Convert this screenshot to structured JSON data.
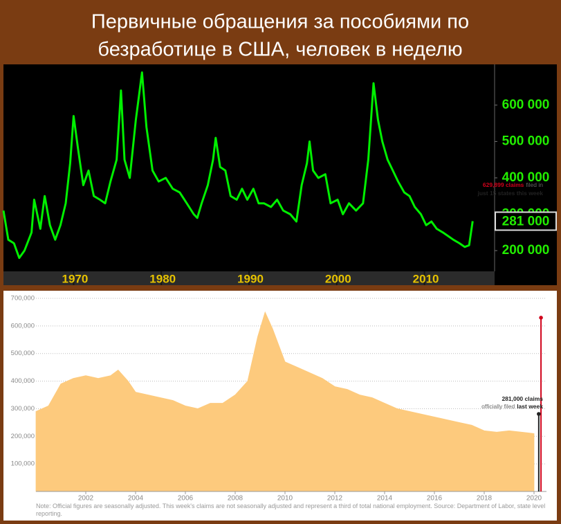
{
  "chart_data": [
    {
      "type": "line",
      "title": [
        "Первичные обращения за пособиями по",
        "безработице в США, человек в неделю"
      ],
      "x": [
        1962.0,
        1962.55,
        1963.2,
        1963.8,
        1964.4,
        1965.2,
        1965.5,
        1966.2,
        1966.7,
        1967.3,
        1967.9,
        1968.5,
        1969.1,
        1969.6,
        1970.0,
        1970.5,
        1971.1,
        1971.7,
        1972.3,
        1973.0,
        1973.6,
        1974.2,
        1974.9,
        1975.4,
        1975.8,
        1976.4,
        1977.1,
        1977.8,
        1978.3,
        1979.0,
        1979.7,
        1980.5,
        1981.3,
        1982.1,
        1982.9,
        1983.7,
        1984.1,
        1984.6,
        1985.3,
        1985.9,
        1986.2,
        1986.7,
        1987.3,
        1987.9,
        1988.6,
        1989.2,
        1989.8,
        1990.5,
        1991.1,
        1991.7,
        1992.5,
        1993.2,
        1993.9,
        1994.7,
        1995.4,
        1996.0,
        1996.6,
        1996.9,
        1997.3,
        1997.9,
        1998.7,
        1999.3,
        2000.1,
        2000.7,
        2001.4,
        2002.2,
        2003.0,
        2003.6,
        2004.2,
        2004.7,
        2005.2,
        2005.8,
        2006.4,
        2007.0,
        2007.7,
        2008.3,
        2008.9,
        2009.6,
        2010.2,
        2010.8,
        2011.4,
        2012.1,
        2012.7,
        2013.3,
        2014.0,
        2014.6,
        2015.1,
        2015.5
      ],
      "series": [
        {
          "color": "#00f000",
          "values": [
            310000,
            230000,
            220000,
            180000,
            200000,
            250000,
            340000,
            260000,
            350000,
            270000,
            230000,
            270000,
            330000,
            440000,
            570000,
            480000,
            380000,
            420000,
            350000,
            340000,
            330000,
            390000,
            450000,
            640000,
            450000,
            400000,
            560000,
            690000,
            540000,
            420000,
            390000,
            400000,
            370000,
            360000,
            330000,
            300000,
            290000,
            330000,
            380000,
            450000,
            510000,
            430000,
            420000,
            350000,
            340000,
            370000,
            340000,
            370000,
            330000,
            330000,
            320000,
            340000,
            310000,
            300000,
            280000,
            380000,
            440000,
            500000,
            420000,
            400000,
            410000,
            330000,
            340000,
            300000,
            330000,
            310000,
            330000,
            450000,
            660000,
            560000,
            500000,
            450000,
            420000,
            390000,
            360000,
            350000,
            320000,
            300000,
            270000,
            280000,
            260000,
            250000,
            240000,
            230000,
            220000,
            210000,
            215000,
            281000
          ]
        }
      ],
      "highlight": {
        "value": 281000,
        "label": "281 000"
      },
      "xlim": [
        1962,
        2018
      ],
      "xticks": [
        1970,
        1980,
        1990,
        2000,
        2010
      ],
      "ylim": [
        143000,
        712000
      ],
      "yticks": [
        {
          "value": 200000,
          "label": "200 000"
        },
        {
          "value": 300000,
          "label": "300 000"
        },
        {
          "value": 400000,
          "label": "400 000"
        },
        {
          "value": 500000,
          "label": "500 000"
        },
        {
          "value": 600000,
          "label": "600 000"
        }
      ]
    },
    {
      "type": "area",
      "x": [
        2000.0,
        2000.5,
        2001.0,
        2001.5,
        2002.0,
        2002.5,
        2003.0,
        2003.3,
        2003.7,
        2004.0,
        2004.5,
        2005.0,
        2005.5,
        2006.0,
        2006.5,
        2007.0,
        2007.5,
        2008.0,
        2008.5,
        2008.9,
        2009.2,
        2009.5,
        2010.0,
        2010.5,
        2011.0,
        2011.5,
        2012.0,
        2012.5,
        2013.0,
        2013.5,
        2014.0,
        2014.5,
        2015.0,
        2015.5,
        2016.0,
        2016.5,
        2017.0,
        2017.5,
        2018.0,
        2018.5,
        2019.0,
        2019.5,
        2020.0
      ],
      "series": [
        {
          "color": "#fdca7d",
          "values": [
            290000,
            310000,
            390000,
            410000,
            420000,
            410000,
            420000,
            440000,
            400000,
            360000,
            350000,
            340000,
            330000,
            310000,
            300000,
            320000,
            320000,
            350000,
            400000,
            560000,
            650000,
            590000,
            470000,
            450000,
            430000,
            410000,
            380000,
            370000,
            350000,
            340000,
            320000,
            300000,
            290000,
            280000,
            270000,
            260000,
            250000,
            240000,
            220000,
            215000,
            220000,
            215000,
            210000
          ]
        }
      ],
      "highlights": [
        {
          "x": 2020.28,
          "value": 629899,
          "value_label": "629,899 claims",
          "text": [
            "filed in",
            "just 15 states this week"
          ],
          "color": "#d0021b"
        },
        {
          "x": 2020.19,
          "value": 281000,
          "value_label": "281,000 claims",
          "text": [
            "officially filed",
            "last week"
          ],
          "color": "#222222"
        }
      ],
      "xlim": [
        2000,
        2020.5
      ],
      "xticks": [
        2002,
        2004,
        2006,
        2008,
        2010,
        2012,
        2014,
        2016,
        2018,
        2020
      ],
      "ylim": [
        0,
        700000
      ],
      "yticks": [
        {
          "value": 100000,
          "label": "100,000"
        },
        {
          "value": 200000,
          "label": "200,000"
        },
        {
          "value": 300000,
          "label": "300,000"
        },
        {
          "value": 400000,
          "label": "400,000"
        },
        {
          "value": 500000,
          "label": "500,000"
        },
        {
          "value": 600000,
          "label": "600,000"
        },
        {
          "value": 700000,
          "label": "700,000"
        }
      ],
      "grid": true,
      "note": "Note: Official figures are seasonally adjusted. This week's claims are not seasonally adjusted and represent a third of total national employment. Source: Department of Labor, state level reporting."
    }
  ]
}
